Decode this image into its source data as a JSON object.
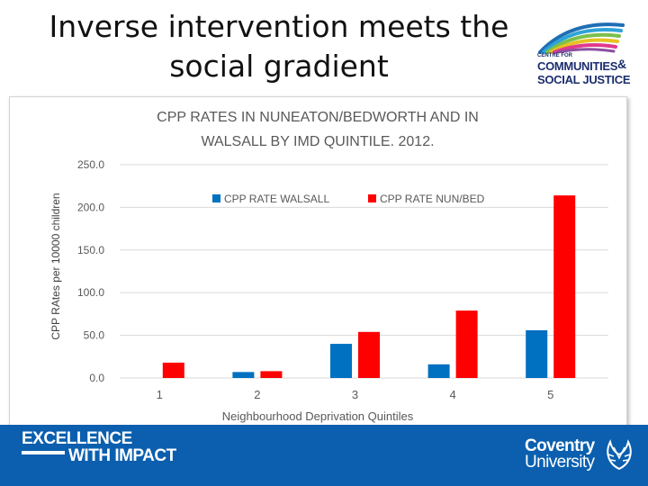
{
  "slide": {
    "title_line1": "Inverse intervention meets the",
    "title_line2": "social gradient"
  },
  "logo": {
    "small_text": "CENTRE FOR",
    "line1": "COMMUNITIES",
    "ampersand": "&",
    "line2": "SOCIAL JUSTICE",
    "arc_colors": [
      "#1f6fb5",
      "#2fa3d9",
      "#7cc04b",
      "#e8c21f",
      "#e03a8e",
      "#8a4fa0"
    ]
  },
  "footer": {
    "tagline_line1": "EXCELLENCE",
    "tagline_line2": "WITH IMPACT",
    "university_line1": "Coventry",
    "university_line2": "University",
    "bg_color": "#0b5fae"
  },
  "chart_data": {
    "type": "bar",
    "title_line1": "CPP RATES IN NUNEATON/BEDWORTH AND IN",
    "title_line2": "WALSALL BY IMD QUINTILE. 2012.",
    "xlabel": "Neighbourhood Deprivation Quintiles",
    "ylabel": "CPP RAtes per 10000 children",
    "categories": [
      "1",
      "2",
      "3",
      "4",
      "5"
    ],
    "ylim": [
      0,
      250
    ],
    "yticks": [
      "0.0",
      "50.0",
      "100.0",
      "150.0",
      "200.0",
      "250.0"
    ],
    "grid": true,
    "legend_position": "top-center",
    "series": [
      {
        "name": "CPP RATE WALSALL",
        "color": "#0070c0",
        "values": [
          0,
          7,
          40,
          16,
          56
        ]
      },
      {
        "name": "CPP RATE NUN/BED",
        "color": "#ff0000",
        "values": [
          18,
          8,
          54,
          79,
          214
        ]
      }
    ]
  }
}
